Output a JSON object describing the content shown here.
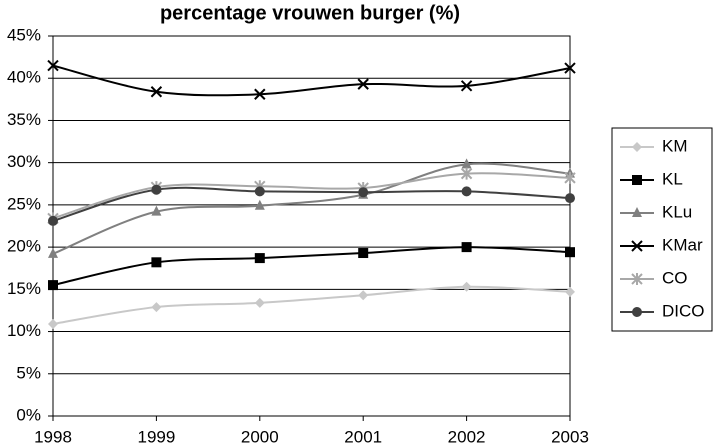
{
  "chart_data": {
    "type": "line",
    "title": "percentage vrouwen burger (%)",
    "x": [
      1998,
      1999,
      2000,
      2001,
      2002,
      2003
    ],
    "xlim": [
      1998,
      2003
    ],
    "xticks": [
      1998,
      1999,
      2000,
      2001,
      2002,
      2003
    ],
    "ylim": [
      0,
      45
    ],
    "yticks": [
      {
        "value": 0,
        "label": "0%"
      },
      {
        "value": 5,
        "label": "5%"
      },
      {
        "value": 10,
        "label": "10%"
      },
      {
        "value": 15,
        "label": "15%"
      },
      {
        "value": 20,
        "label": "20%"
      },
      {
        "value": 25,
        "label": "25%"
      },
      {
        "value": 30,
        "label": "30%"
      },
      {
        "value": 35,
        "label": "35%"
      },
      {
        "value": 40,
        "label": "40%"
      },
      {
        "value": 45,
        "label": "45%"
      }
    ],
    "grid": true,
    "legend": "right",
    "series": [
      {
        "name": "KM",
        "color": "#c8c8c8",
        "marker": "diamond",
        "values": [
          10.9,
          12.9,
          13.4,
          14.3,
          15.3,
          14.7
        ]
      },
      {
        "name": "KL",
        "color": "#000000",
        "marker": "square",
        "values": [
          15.5,
          18.2,
          18.7,
          19.3,
          20.0,
          19.4
        ]
      },
      {
        "name": "KLu",
        "color": "#808080",
        "marker": "triangle",
        "values": [
          19.2,
          24.2,
          24.9,
          26.2,
          29.8,
          28.7
        ]
      },
      {
        "name": "KMar",
        "color": "#000000",
        "marker": "x",
        "values": [
          41.5,
          38.4,
          38.1,
          39.3,
          39.1,
          41.2
        ]
      },
      {
        "name": "CO",
        "color": "#a8a8a8",
        "marker": "asterisk",
        "values": [
          23.4,
          27.1,
          27.2,
          27.0,
          28.7,
          28.2
        ]
      },
      {
        "name": "DICO",
        "color": "#404040",
        "marker": "circle",
        "values": [
          23.1,
          26.8,
          26.6,
          26.5,
          26.6,
          25.8
        ]
      }
    ]
  }
}
